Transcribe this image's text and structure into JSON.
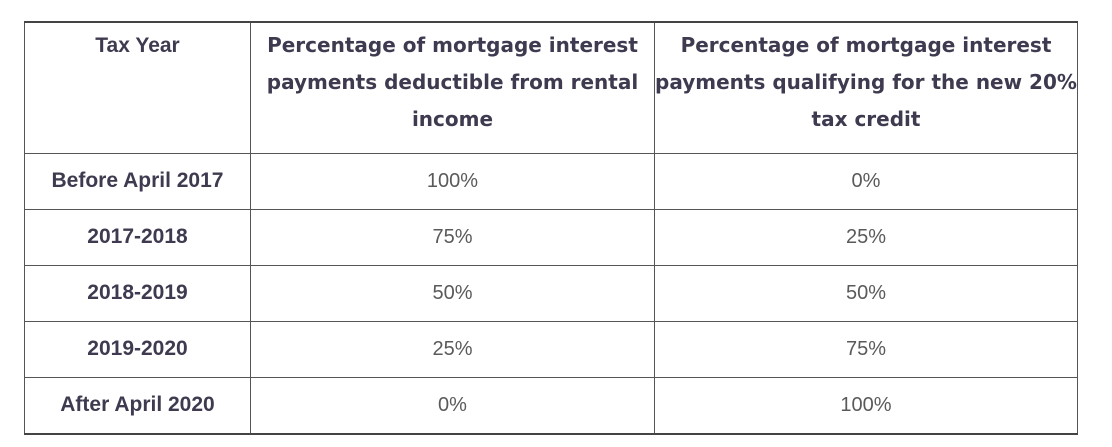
{
  "table": {
    "headers": [
      "Tax Year",
      "Percentage of mortgage interest payments deductible from rental income",
      "Percentage of mortgage interest payments qualifying for the new 20% tax credit"
    ],
    "rows": [
      {
        "year": "Before April 2017",
        "deductible": "100%",
        "credit": "0%"
      },
      {
        "year": "2017-2018",
        "deductible": "75%",
        "credit": "25%"
      },
      {
        "year": "2018-2019",
        "deductible": "50%",
        "credit": "50%"
      },
      {
        "year": "2019-2020",
        "deductible": "25%",
        "credit": "75%"
      },
      {
        "year": "After April 2020",
        "deductible": "0%",
        "credit": "100%"
      }
    ]
  }
}
